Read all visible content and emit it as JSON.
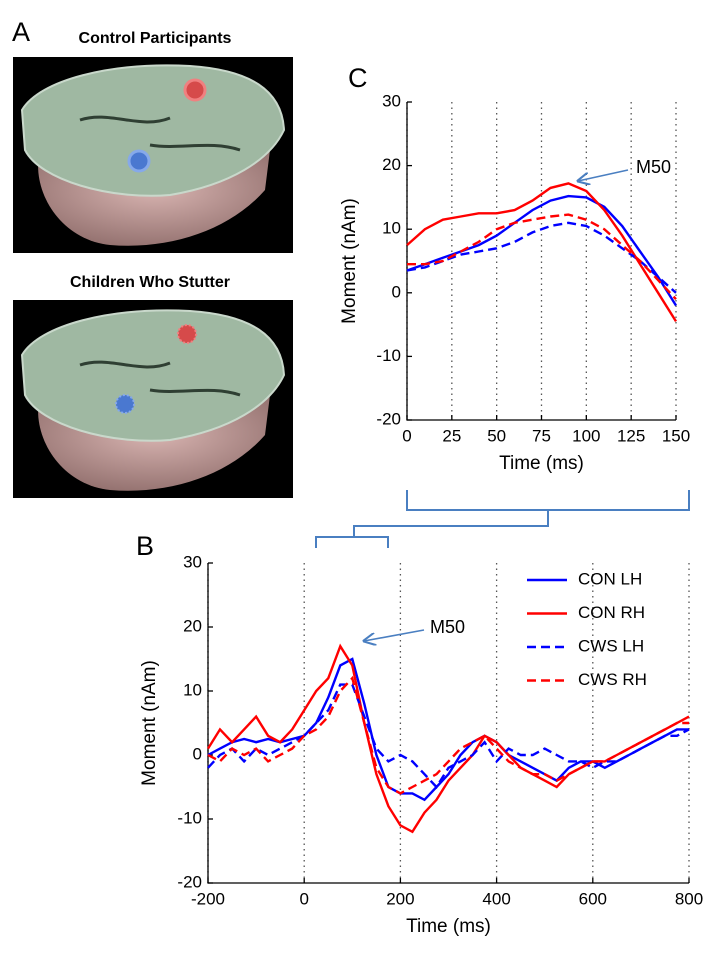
{
  "panel_a": {
    "label": "A",
    "images": [
      "Control Participants",
      "Children Who Stutter"
    ]
  },
  "chart_data": [
    {
      "type": "line",
      "label": "C",
      "xlabel": "Time (ms)",
      "ylabel": "Moment (nAm)",
      "annotation": "M50",
      "x": [
        0,
        10,
        20,
        30,
        40,
        50,
        60,
        70,
        80,
        90,
        100,
        110,
        120,
        130,
        140,
        150
      ],
      "xlim": [
        0,
        150
      ],
      "xticks": [
        0,
        25,
        50,
        75,
        100,
        125,
        150
      ],
      "ylim": [
        -20,
        30
      ],
      "yticks": [
        -20,
        -10,
        0,
        10,
        20,
        30
      ],
      "xgrid": true,
      "series": [
        {
          "color": "#0000ff",
          "style": "solid",
          "values": [
            3.5,
            4.5,
            5.5,
            6.5,
            7.5,
            9,
            11,
            13,
            14.5,
            15.2,
            15,
            13.5,
            10.5,
            6.5,
            2.5,
            -2
          ]
        },
        {
          "color": "#ff0000",
          "style": "solid",
          "values": [
            7.5,
            10,
            11.5,
            12,
            12.5,
            12.5,
            13,
            14.5,
            16.5,
            17.2,
            16,
            13,
            9,
            4.5,
            0,
            -4.5
          ]
        },
        {
          "color": "#0000ff",
          "style": "dashed",
          "values": [
            3.5,
            4,
            5,
            6,
            6.5,
            7,
            8,
            9.5,
            10.5,
            11,
            10.5,
            9,
            7,
            5,
            2.5,
            0
          ]
        },
        {
          "color": "#ff0000",
          "style": "dashed",
          "values": [
            4.5,
            4.5,
            5,
            6.5,
            8,
            10,
            11,
            11.5,
            12,
            12.3,
            11.5,
            10,
            7.5,
            5,
            2,
            -1
          ]
        }
      ]
    },
    {
      "type": "line",
      "label": "B",
      "xlabel": "Time (ms)",
      "ylabel": "Moment (nAm)",
      "annotation": "M50",
      "x": [
        -200,
        -175,
        -150,
        -125,
        -100,
        -75,
        -50,
        -25,
        0,
        25,
        50,
        75,
        100,
        125,
        150,
        175,
        200,
        225,
        250,
        275,
        300,
        325,
        350,
        375,
        400,
        425,
        450,
        475,
        500,
        525,
        550,
        575,
        600,
        625,
        650,
        675,
        700,
        725,
        750,
        775,
        800
      ],
      "xlim": [
        -200,
        800
      ],
      "xticks": [
        -200,
        0,
        200,
        400,
        600,
        800
      ],
      "ylim": [
        -20,
        30
      ],
      "yticks": [
        -20,
        -10,
        0,
        10,
        20,
        30
      ],
      "xgrid": true,
      "legend": "upper right",
      "series": [
        {
          "name": "CON LH",
          "color": "#0000ff",
          "style": "solid",
          "values": [
            0,
            1,
            2,
            2.5,
            2,
            2.5,
            2,
            2.5,
            3,
            5,
            9,
            14,
            15,
            8,
            0,
            -5,
            -6,
            -6,
            -7,
            -5,
            -3,
            0,
            2,
            3,
            2,
            0,
            -1,
            -2,
            -3,
            -4,
            -2,
            -1,
            -1,
            -2,
            -1,
            0,
            1,
            2,
            3,
            4,
            4
          ]
        },
        {
          "name": "CON RH",
          "color": "#ff0000",
          "style": "solid",
          "values": [
            1,
            4,
            2,
            4,
            6,
            3,
            2,
            4,
            7,
            10,
            12,
            17,
            14,
            5,
            -3,
            -8,
            -11,
            -12,
            -9,
            -7,
            -4,
            -2,
            0,
            3,
            2,
            0,
            -2,
            -3,
            -4,
            -5,
            -3,
            -2,
            -1,
            -1,
            0,
            1,
            2,
            3,
            4,
            5,
            6
          ]
        },
        {
          "name": "CWS LH",
          "color": "#0000ff",
          "style": "dashed",
          "values": [
            -2,
            0,
            1,
            -1,
            1,
            0,
            1,
            2,
            3,
            5,
            7,
            11,
            11,
            6,
            1,
            -1,
            0,
            -1,
            -3,
            -5,
            -2,
            -1,
            0,
            2,
            -1,
            1,
            0,
            0,
            1,
            0,
            -1,
            -1,
            -2,
            -1,
            -1,
            0,
            1,
            2,
            3,
            3,
            4
          ]
        },
        {
          "name": "CWS RH",
          "color": "#ff0000",
          "style": "dashed",
          "values": [
            0,
            -1,
            1,
            0,
            1,
            -1,
            0,
            1,
            3,
            4,
            6,
            10,
            12,
            5,
            -2,
            -5,
            -6,
            -5,
            -4,
            -3,
            -1,
            1,
            2,
            3,
            1,
            -1,
            -2,
            -3,
            -3,
            -4,
            -3,
            -2,
            -1,
            -1,
            0,
            1,
            2,
            3,
            4,
            5,
            5
          ]
        }
      ]
    }
  ]
}
